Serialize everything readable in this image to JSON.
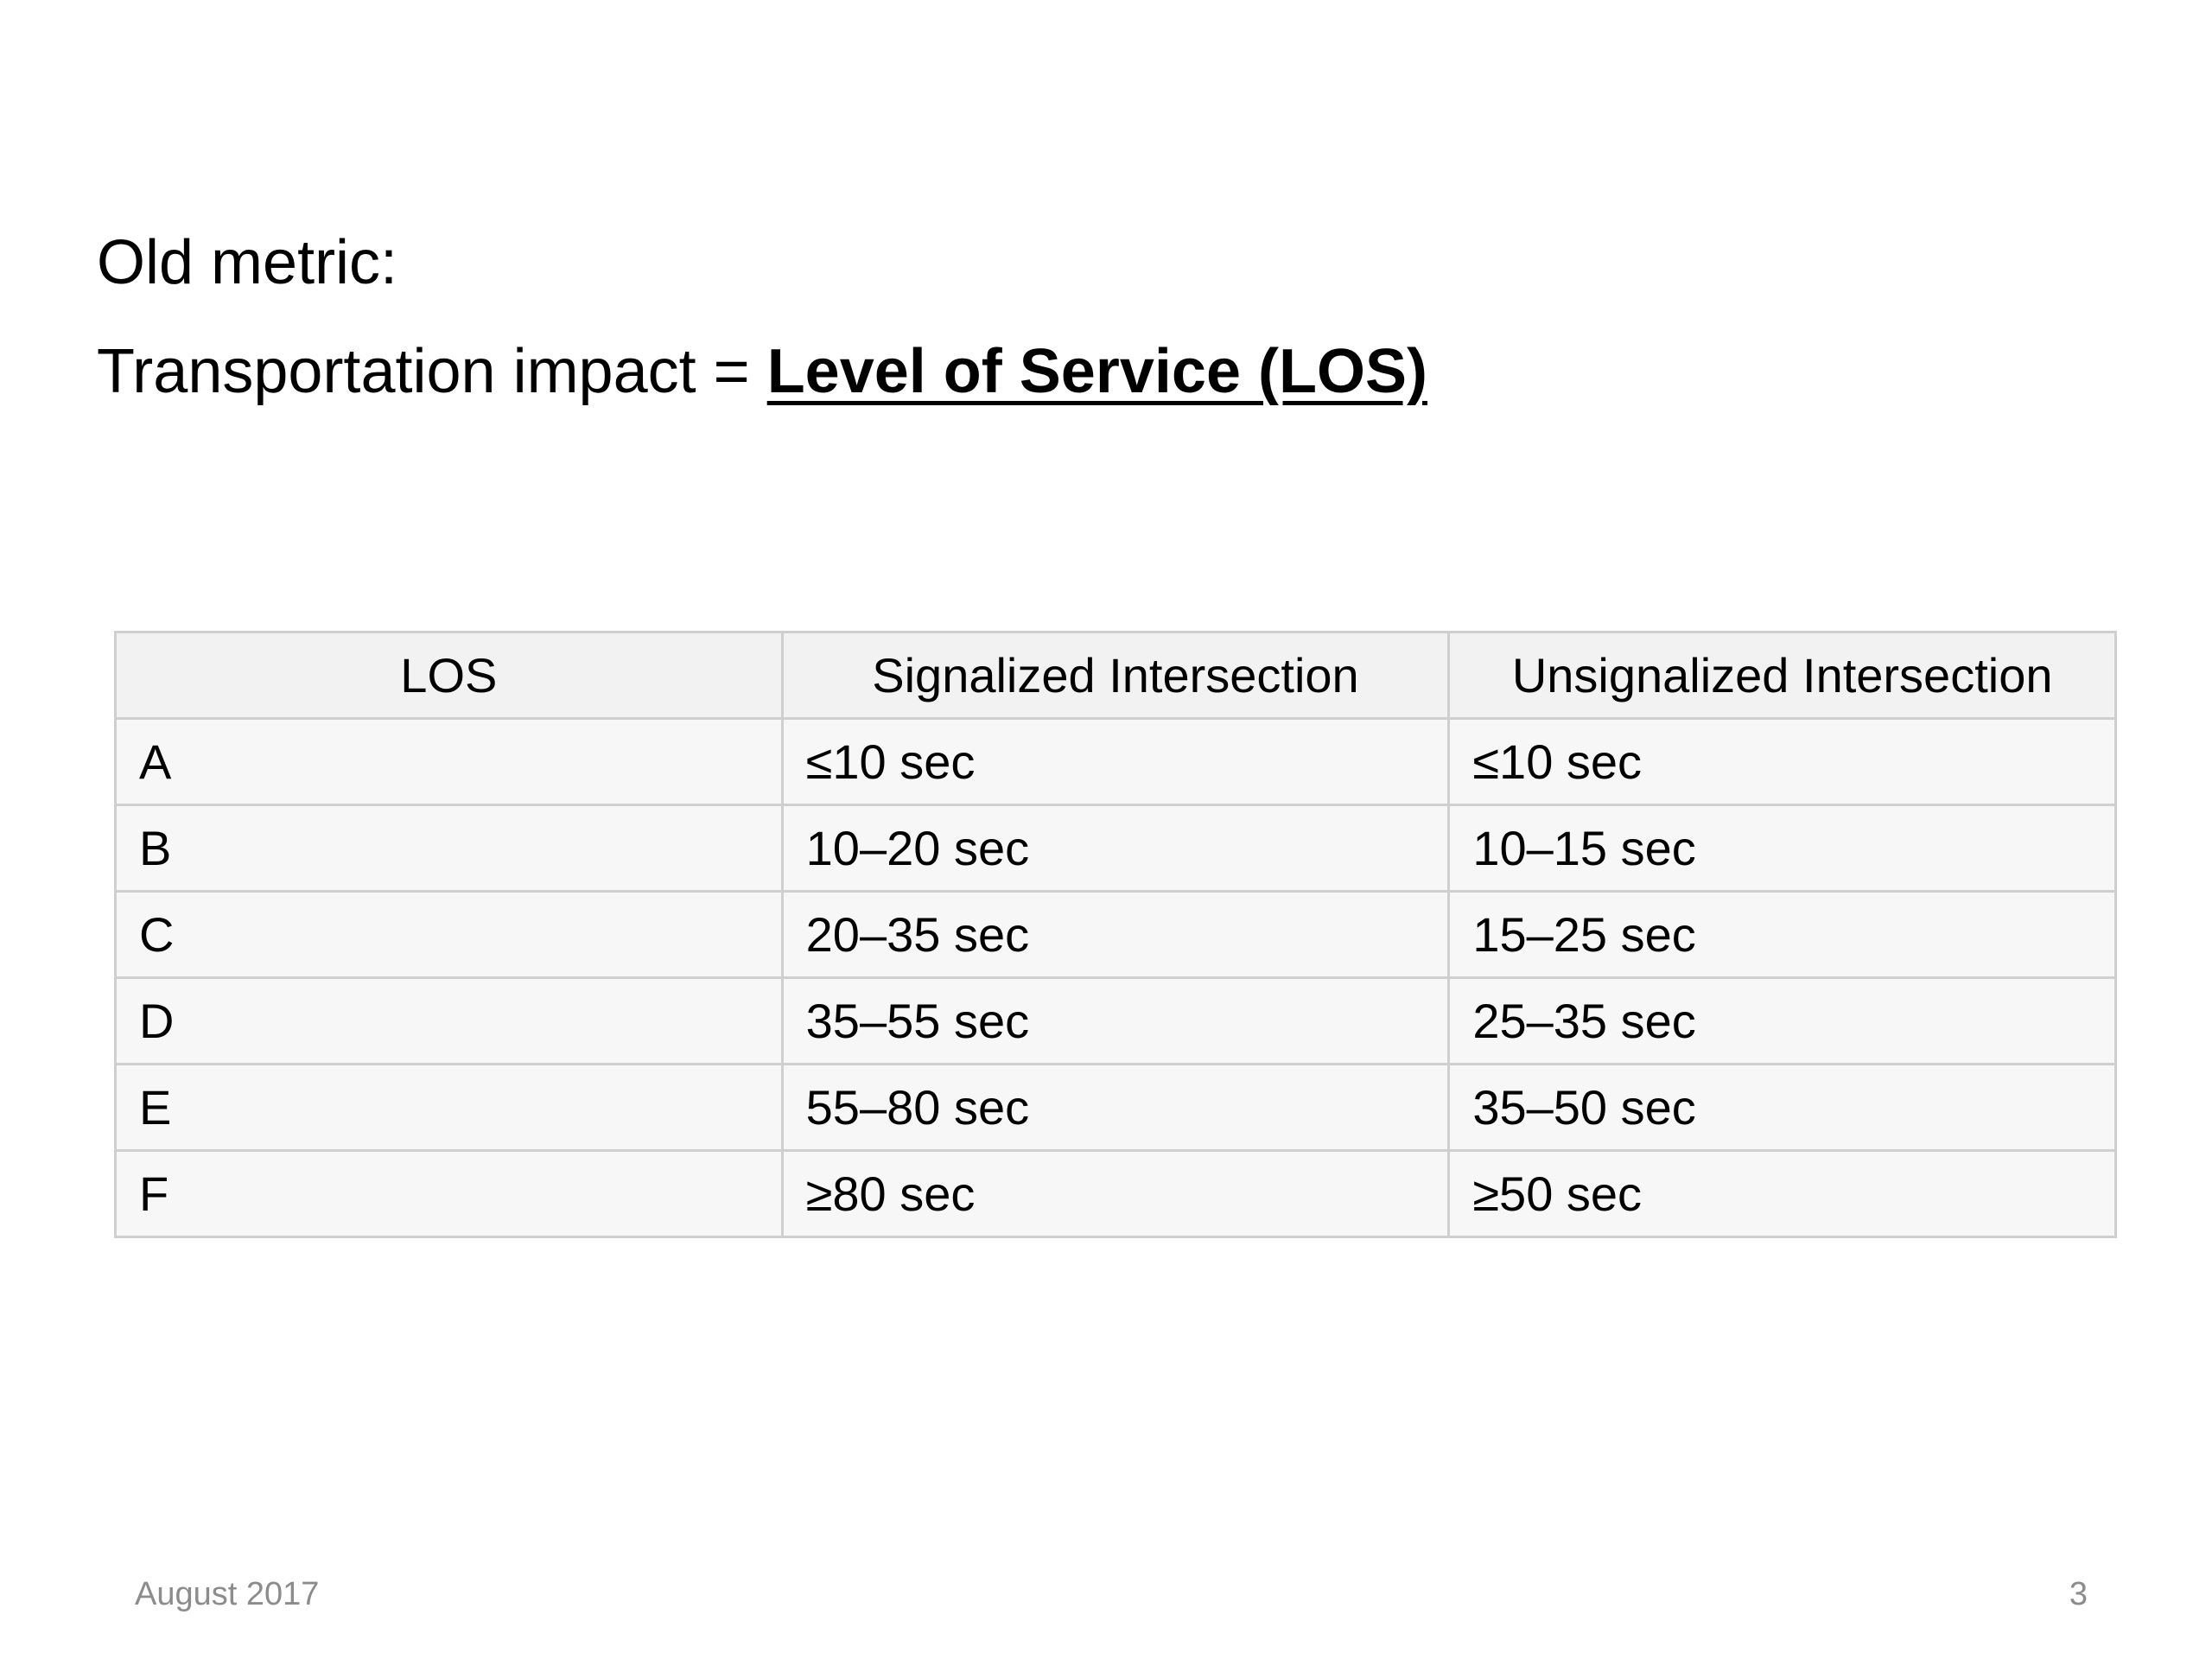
{
  "heading": {
    "line1": "Old metric:",
    "line2_prefix": "Transportation impact = ",
    "line2_emphasis": "Level of Service (LOS)"
  },
  "table": {
    "headers": [
      "LOS",
      "Signalized Intersection",
      "Unsignalized Intersection"
    ],
    "rows": [
      [
        "A",
        "≤10 sec",
        "≤10 sec"
      ],
      [
        "B",
        "10–20 sec",
        "10–15 sec"
      ],
      [
        "C",
        "20–35 sec",
        "15–25 sec"
      ],
      [
        "D",
        "35–55 sec",
        "25–35 sec"
      ],
      [
        "E",
        "55–80 sec",
        "35–50 sec"
      ],
      [
        "F",
        "≥80 sec",
        "≥50 sec"
      ]
    ]
  },
  "footer": {
    "date": "August 2017",
    "page_number": "3"
  }
}
